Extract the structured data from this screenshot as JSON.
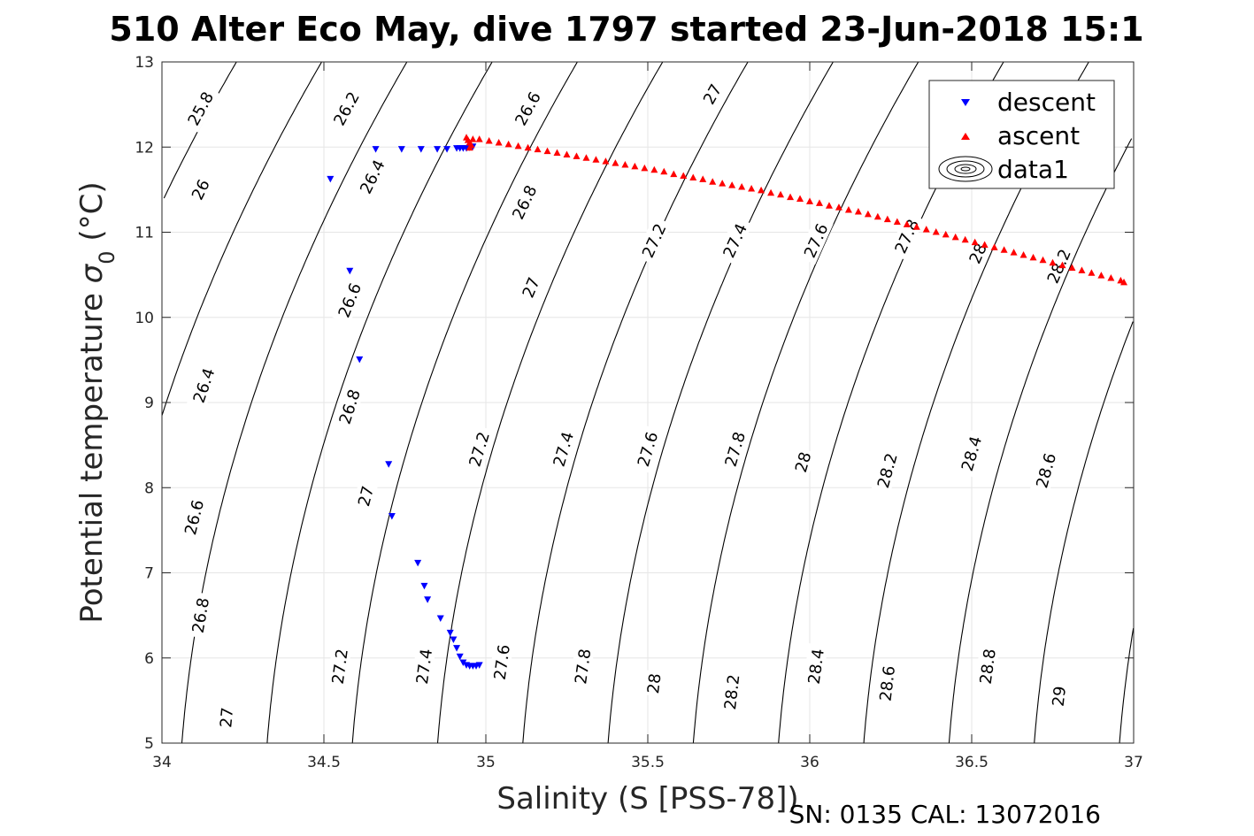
{
  "figure": {
    "title": "510 Alter Eco May, dive 1797 started 23-Jun-2018 15:1",
    "footer": "SN: 0135  CAL: 13072016"
  },
  "chart_data": {
    "type": "scatter",
    "xlabel": "Salinity (S [PSS-78])",
    "ylabel_main": "Potential temperature ",
    "ylabel_symbol": "σ",
    "ylabel_sub": "0",
    "ylabel_unit": " (°C)",
    "xlim": [
      34,
      37
    ],
    "ylim": [
      5,
      13
    ],
    "xticks": [
      "34",
      "34.5",
      "35",
      "35.5",
      "36",
      "36.5",
      "37"
    ],
    "yticks": [
      "5",
      "6",
      "7",
      "8",
      "9",
      "10",
      "11",
      "12",
      "13"
    ],
    "grid": true,
    "legend": {
      "placement": "top-right",
      "entries": [
        {
          "label": "descent",
          "color": "#0000ff",
          "marker": "triangle-down"
        },
        {
          "label": "ascent",
          "color": "#ff0000",
          "marker": "triangle-up"
        },
        {
          "label": "data1",
          "color": "#000000",
          "marker": "contour"
        }
      ]
    },
    "contours": {
      "color": "#000000",
      "levels": [
        25.8,
        26,
        26.2,
        26.4,
        26.6,
        26.8,
        27,
        27.2,
        27.4,
        27.6,
        27.8,
        28,
        28.2,
        28.4,
        28.6,
        28.8,
        29
      ],
      "labels": [
        {
          "text": "25.8",
          "s": 34.12,
          "t": 12.45
        },
        {
          "text": "26",
          "s": 34.12,
          "t": 11.5
        },
        {
          "text": "26.2",
          "s": 34.57,
          "t": 12.45
        },
        {
          "text": "26.4",
          "s": 34.65,
          "t": 11.65
        },
        {
          "text": "26.4",
          "s": 34.13,
          "t": 9.2
        },
        {
          "text": "26.6",
          "s": 35.13,
          "t": 12.45
        },
        {
          "text": "26.6",
          "s": 34.58,
          "t": 10.2
        },
        {
          "text": "26.6",
          "s": 34.1,
          "t": 7.65
        },
        {
          "text": "26.8",
          "s": 35.12,
          "t": 11.35
        },
        {
          "text": "26.8",
          "s": 34.58,
          "t": 8.95
        },
        {
          "text": "26.8",
          "s": 34.12,
          "t": 6.5
        },
        {
          "text": "27",
          "s": 35.7,
          "t": 12.62
        },
        {
          "text": "27",
          "s": 35.14,
          "t": 10.35
        },
        {
          "text": "27",
          "s": 34.63,
          "t": 7.9
        },
        {
          "text": "27",
          "s": 34.2,
          "t": 5.3
        },
        {
          "text": "27.2",
          "s": 35.52,
          "t": 10.9
        },
        {
          "text": "27.2",
          "s": 34.98,
          "t": 8.45
        },
        {
          "text": "27.2",
          "s": 34.55,
          "t": 5.9
        },
        {
          "text": "27.4",
          "s": 35.77,
          "t": 10.9
        },
        {
          "text": "27.4",
          "s": 35.24,
          "t": 8.45
        },
        {
          "text": "27.4",
          "s": 34.81,
          "t": 5.9
        },
        {
          "text": "27.6",
          "s": 36.02,
          "t": 10.9
        },
        {
          "text": "27.6",
          "s": 35.5,
          "t": 8.45
        },
        {
          "text": "27.6",
          "s": 35.05,
          "t": 5.95
        },
        {
          "text": "27.8",
          "s": 36.3,
          "t": 10.95
        },
        {
          "text": "27.8",
          "s": 35.77,
          "t": 8.45
        },
        {
          "text": "27.8",
          "s": 35.3,
          "t": 5.9
        },
        {
          "text": "28",
          "s": 36.52,
          "t": 10.75
        },
        {
          "text": "28",
          "s": 35.98,
          "t": 8.3
        },
        {
          "text": "28",
          "s": 35.52,
          "t": 5.7
        },
        {
          "text": "28.2",
          "s": 36.77,
          "t": 10.6
        },
        {
          "text": "28.2",
          "s": 36.24,
          "t": 8.2
        },
        {
          "text": "28.2",
          "s": 35.76,
          "t": 5.6
        },
        {
          "text": "28.4",
          "s": 36.5,
          "t": 8.4
        },
        {
          "text": "28.4",
          "s": 36.02,
          "t": 5.9
        },
        {
          "text": "28.6",
          "s": 36.73,
          "t": 8.2
        },
        {
          "text": "28.6",
          "s": 36.24,
          "t": 5.7
        },
        {
          "text": "28.8",
          "s": 36.55,
          "t": 5.9
        },
        {
          "text": "29",
          "s": 36.77,
          "t": 5.55
        }
      ]
    },
    "series": [
      {
        "name": "descent",
        "color": "#0000ff",
        "marker": "triangle-down",
        "points": [
          [
            34.52,
            11.62
          ],
          [
            34.66,
            11.97
          ],
          [
            34.74,
            11.97
          ],
          [
            34.8,
            11.97
          ],
          [
            34.85,
            11.97
          ],
          [
            34.88,
            11.97
          ],
          [
            34.91,
            11.98
          ],
          [
            34.92,
            11.98
          ],
          [
            34.93,
            11.98
          ],
          [
            34.94,
            11.98
          ],
          [
            34.95,
            11.99
          ],
          [
            34.96,
            12.0
          ],
          [
            34.58,
            10.54
          ],
          [
            34.61,
            9.5
          ],
          [
            34.7,
            8.27
          ],
          [
            34.71,
            7.66
          ],
          [
            34.79,
            7.11
          ],
          [
            34.81,
            6.84
          ],
          [
            34.82,
            6.68
          ],
          [
            34.86,
            6.46
          ],
          [
            34.89,
            6.29
          ],
          [
            34.9,
            6.21
          ],
          [
            34.91,
            6.11
          ],
          [
            34.92,
            6.01
          ],
          [
            34.93,
            5.94
          ],
          [
            34.94,
            5.91
          ],
          [
            34.95,
            5.9
          ],
          [
            34.96,
            5.9
          ],
          [
            34.97,
            5.9
          ],
          [
            34.98,
            5.91
          ]
        ]
      },
      {
        "name": "ascent",
        "color": "#ff0000",
        "marker": "triangle-up",
        "points": [
          [
            34.94,
            12.12
          ],
          [
            34.945,
            12.09
          ],
          [
            34.95,
            12.06
          ],
          [
            34.955,
            12.03
          ],
          [
            34.96,
            12.1
          ],
          [
            34.95,
            12.0
          ],
          [
            34.98,
            12.1
          ],
          [
            35.01,
            12.08
          ],
          [
            35.04,
            12.06
          ],
          [
            35.07,
            12.04
          ],
          [
            35.1,
            12.02
          ],
          [
            35.13,
            12.0
          ],
          [
            35.16,
            11.98
          ],
          [
            35.19,
            11.96
          ],
          [
            35.22,
            11.94
          ],
          [
            35.25,
            11.92
          ],
          [
            35.28,
            11.9
          ],
          [
            35.31,
            11.88
          ],
          [
            35.34,
            11.86
          ],
          [
            35.37,
            11.84
          ],
          [
            35.4,
            11.82
          ],
          [
            35.43,
            11.8
          ],
          [
            35.46,
            11.78
          ],
          [
            35.49,
            11.76
          ],
          [
            35.52,
            11.74
          ],
          [
            35.55,
            11.72
          ],
          [
            35.58,
            11.69
          ],
          [
            35.61,
            11.67
          ],
          [
            35.64,
            11.65
          ],
          [
            35.67,
            11.63
          ],
          [
            35.7,
            11.6
          ],
          [
            35.73,
            11.58
          ],
          [
            35.76,
            11.56
          ],
          [
            35.79,
            11.54
          ],
          [
            35.82,
            11.52
          ],
          [
            35.85,
            11.5
          ],
          [
            35.88,
            11.47
          ],
          [
            35.91,
            11.45
          ],
          [
            35.94,
            11.42
          ],
          [
            35.97,
            11.4
          ],
          [
            36.0,
            11.37
          ],
          [
            36.03,
            11.35
          ],
          [
            36.06,
            11.32
          ],
          [
            36.09,
            11.3
          ],
          [
            36.12,
            11.27
          ],
          [
            36.15,
            11.25
          ],
          [
            36.18,
            11.22
          ],
          [
            36.21,
            11.19
          ],
          [
            36.24,
            11.16
          ],
          [
            36.27,
            11.13
          ],
          [
            36.3,
            11.1
          ],
          [
            36.33,
            11.07
          ],
          [
            36.36,
            11.04
          ],
          [
            36.39,
            11.01
          ],
          [
            36.42,
            10.98
          ],
          [
            36.45,
            10.95
          ],
          [
            36.48,
            10.92
          ],
          [
            36.51,
            10.89
          ],
          [
            36.54,
            10.86
          ],
          [
            36.57,
            10.83
          ],
          [
            36.6,
            10.8
          ],
          [
            36.63,
            10.77
          ],
          [
            36.66,
            10.74
          ],
          [
            36.69,
            10.71
          ],
          [
            36.72,
            10.68
          ],
          [
            36.75,
            10.65
          ],
          [
            36.78,
            10.62
          ],
          [
            36.81,
            10.59
          ],
          [
            36.84,
            10.56
          ],
          [
            36.87,
            10.53
          ],
          [
            36.9,
            10.5
          ],
          [
            36.93,
            10.47
          ],
          [
            36.96,
            10.44
          ],
          [
            36.97,
            10.42
          ]
        ]
      }
    ]
  }
}
